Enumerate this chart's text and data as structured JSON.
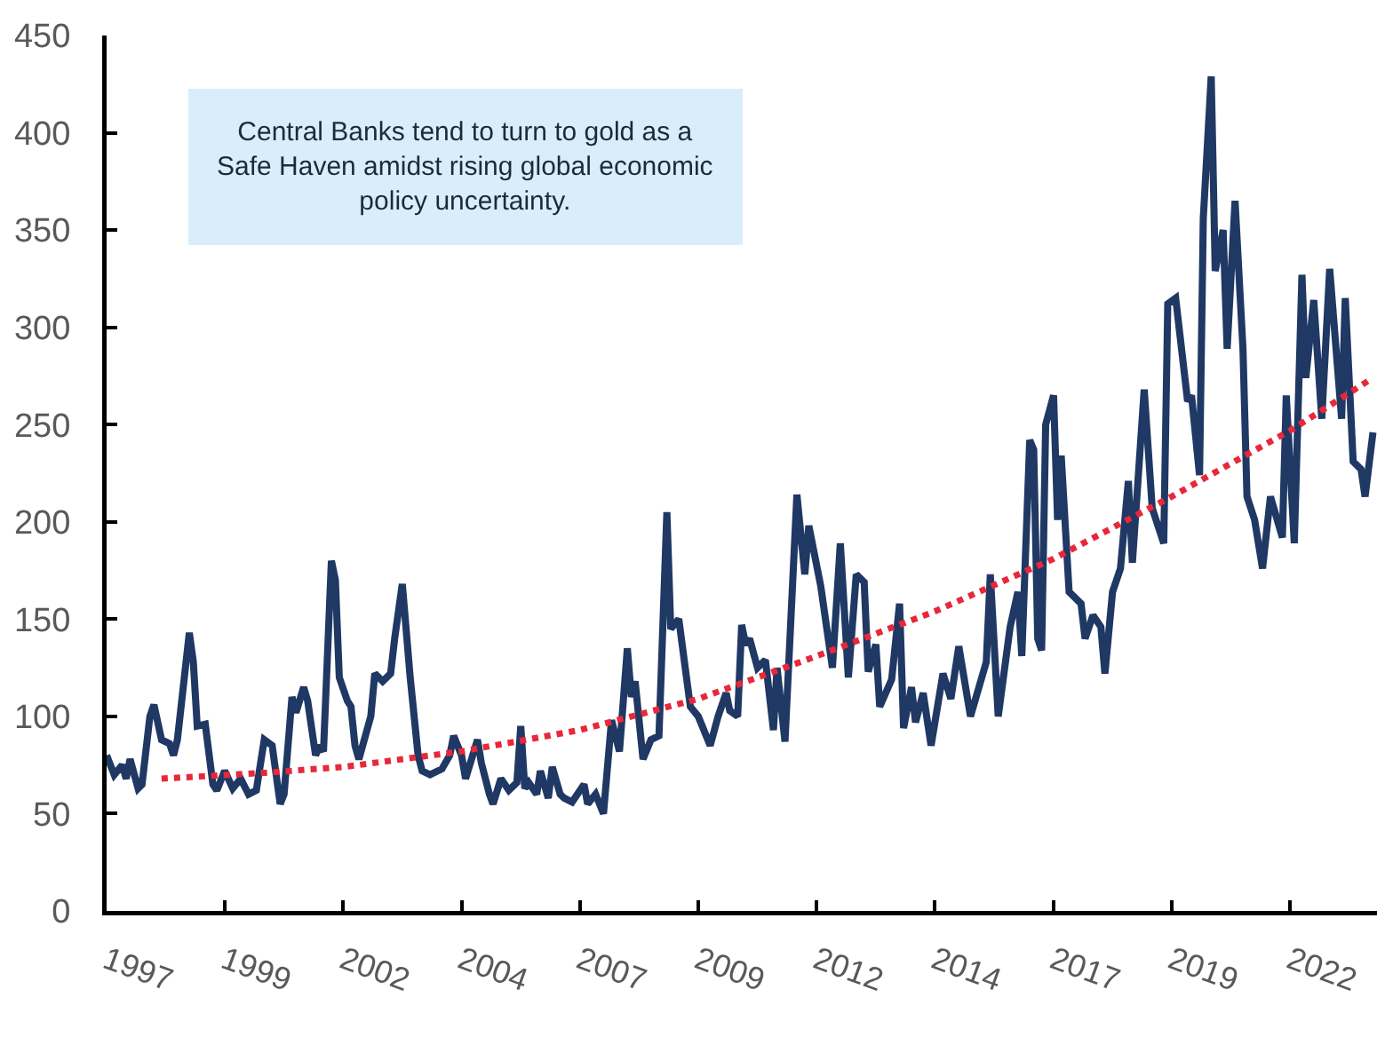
{
  "chart_data": {
    "type": "line",
    "annotations": [
      "Central Banks tend to turn to gold as a Safe Haven amidst rising global economic policy uncertainty."
    ],
    "xlim": [
      "1997-01",
      "2023-11"
    ],
    "xticks": [
      {
        "value": "1997-01",
        "label": "1997"
      },
      {
        "value": "1999-07",
        "label": "1999"
      },
      {
        "value": "2002-01",
        "label": "2002"
      },
      {
        "value": "2004-07",
        "label": "2004"
      },
      {
        "value": "2007-01",
        "label": "2007"
      },
      {
        "value": "2009-07",
        "label": "2009"
      },
      {
        "value": "2012-01",
        "label": "2012"
      },
      {
        "value": "2014-07",
        "label": "2014"
      },
      {
        "value": "2017-01",
        "label": "2017"
      },
      {
        "value": "2019-07",
        "label": "2019"
      },
      {
        "value": "2022-01",
        "label": "2022"
      }
    ],
    "ylim": [
      0,
      450
    ],
    "yticks": [
      0,
      50,
      100,
      150,
      200,
      250,
      300,
      350,
      400,
      450
    ],
    "grid": false,
    "marker": "none",
    "series": [
      {
        "color": "#1f3864",
        "line_style": "solid",
        "x": [
          "1997-01",
          "1997-03",
          "1997-05",
          "1997-06",
          "1997-07",
          "1997-09",
          "1997-10",
          "1997-12",
          "1998-01",
          "1998-03",
          "1998-05",
          "1998-06",
          "1998-07",
          "1998-10",
          "1998-11",
          "1998-12",
          "1999-02",
          "1999-04",
          "1999-05",
          "1999-07",
          "1999-09",
          "1999-11",
          "2000-01",
          "2000-03",
          "2000-05",
          "2000-07",
          "2000-09",
          "2000-10",
          "2000-12",
          "2001-01",
          "2001-03",
          "2001-04",
          "2001-06",
          "2001-07",
          "2001-08",
          "2001-10",
          "2001-11",
          "2001-12",
          "2002-02",
          "2002-03",
          "2002-04",
          "2002-05",
          "2002-08",
          "2002-09",
          "2002-11",
          "2003-01",
          "2003-02",
          "2003-04",
          "2003-06",
          "2003-08",
          "2003-09",
          "2003-11",
          "2004-02",
          "2004-04",
          "2004-05",
          "2004-07",
          "2004-08",
          "2004-11",
          "2004-12",
          "2005-02",
          "2005-03",
          "2005-05",
          "2005-07",
          "2005-09",
          "2005-10",
          "2005-11",
          "2005-12",
          "2006-02",
          "2006-03",
          "2006-05",
          "2006-06",
          "2006-08",
          "2006-09",
          "2006-11",
          "2007-02",
          "2007-03",
          "2007-05",
          "2007-07",
          "2007-09",
          "2007-11",
          "2008-01",
          "2008-02",
          "2008-03",
          "2008-05",
          "2008-07",
          "2008-09",
          "2008-11",
          "2008-12",
          "2009-02",
          "2009-05",
          "2009-07",
          "2009-10",
          "2009-12",
          "2010-02",
          "2010-03",
          "2010-05",
          "2010-06",
          "2010-07",
          "2010-08",
          "2010-10",
          "2010-12",
          "2011-02",
          "2011-03",
          "2011-05",
          "2011-08",
          "2011-10",
          "2011-11",
          "2012-02",
          "2012-05",
          "2012-07",
          "2012-09",
          "2012-11",
          "2013-01",
          "2013-02",
          "2013-04",
          "2013-05",
          "2013-08",
          "2013-10",
          "2013-11",
          "2014-01",
          "2014-02",
          "2014-04",
          "2014-06",
          "2014-09",
          "2014-11",
          "2015-01",
          "2015-04",
          "2015-08",
          "2015-09",
          "2015-11",
          "2016-02",
          "2016-04",
          "2016-05",
          "2016-07",
          "2016-08",
          "2016-09",
          "2016-10",
          "2016-11",
          "2017-01",
          "2017-02",
          "2017-03",
          "2017-05",
          "2017-08",
          "2017-09",
          "2017-11",
          "2018-01",
          "2018-02",
          "2018-04",
          "2018-06",
          "2018-08",
          "2018-09",
          "2018-12",
          "2019-02",
          "2019-05",
          "2019-06",
          "2019-08",
          "2019-11",
          "2019-12",
          "2020-02",
          "2020-03",
          "2020-05",
          "2020-06",
          "2020-08",
          "2020-09",
          "2020-11",
          "2021-01",
          "2021-02",
          "2021-04",
          "2021-06",
          "2021-08",
          "2021-11",
          "2021-12",
          "2022-02",
          "2022-04",
          "2022-05",
          "2022-07",
          "2022-09",
          "2022-11",
          "2023-02",
          "2023-03",
          "2023-05",
          "2023-07",
          "2023-08",
          "2023-10"
        ],
        "values": [
          80,
          70,
          75,
          68,
          78,
          63,
          65,
          100,
          106,
          88,
          86,
          80,
          88,
          143,
          128,
          95,
          96,
          65,
          62,
          72,
          63,
          68,
          60,
          62,
          88,
          85,
          55,
          60,
          110,
          102,
          115,
          108,
          80,
          85,
          82,
          180,
          170,
          120,
          108,
          105,
          85,
          78,
          100,
          122,
          118,
          122,
          140,
          168,
          120,
          80,
          72,
          70,
          73,
          80,
          90,
          80,
          68,
          88,
          76,
          60,
          55,
          68,
          62,
          66,
          95,
          63,
          66,
          60,
          72,
          58,
          74,
          60,
          58,
          56,
          65,
          55,
          60,
          50,
          98,
          82,
          135,
          110,
          118,
          78,
          88,
          90,
          205,
          145,
          150,
          105,
          100,
          85,
          100,
          112,
          103,
          100,
          147,
          137,
          140,
          125,
          129,
          93,
          125,
          87,
          214,
          173,
          198,
          167,
          125,
          189,
          120,
          173,
          169,
          123,
          137,
          105,
          119,
          158,
          94,
          115,
          97,
          112,
          85,
          122,
          109,
          136,
          100,
          128,
          173,
          100,
          146,
          164,
          131,
          242,
          237,
          140,
          134,
          250,
          265,
          201,
          234,
          164,
          158,
          140,
          152,
          146,
          122,
          164,
          176,
          221,
          179,
          268,
          207,
          189,
          312,
          315,
          262,
          265,
          224,
          356,
          429,
          329,
          350,
          289,
          365,
          289,
          213,
          201,
          176,
          213,
          192,
          265,
          189,
          327,
          274,
          314,
          253,
          330,
          253,
          315,
          231,
          227,
          213,
          246
        ]
      },
      {
        "type": "line",
        "color": "#e8283a",
        "line_style": "dotted",
        "x": [
          "1998-03",
          "2000-05",
          "2002-01",
          "2004-07",
          "2007-01",
          "2009-07",
          "2012-01",
          "2014-07",
          "2017-01",
          "2019-07",
          "2022-01",
          "2023-10"
        ],
        "values": [
          68,
          71,
          74,
          82,
          93,
          109,
          131,
          154,
          181,
          213,
          247,
          274
        ]
      }
    ]
  }
}
